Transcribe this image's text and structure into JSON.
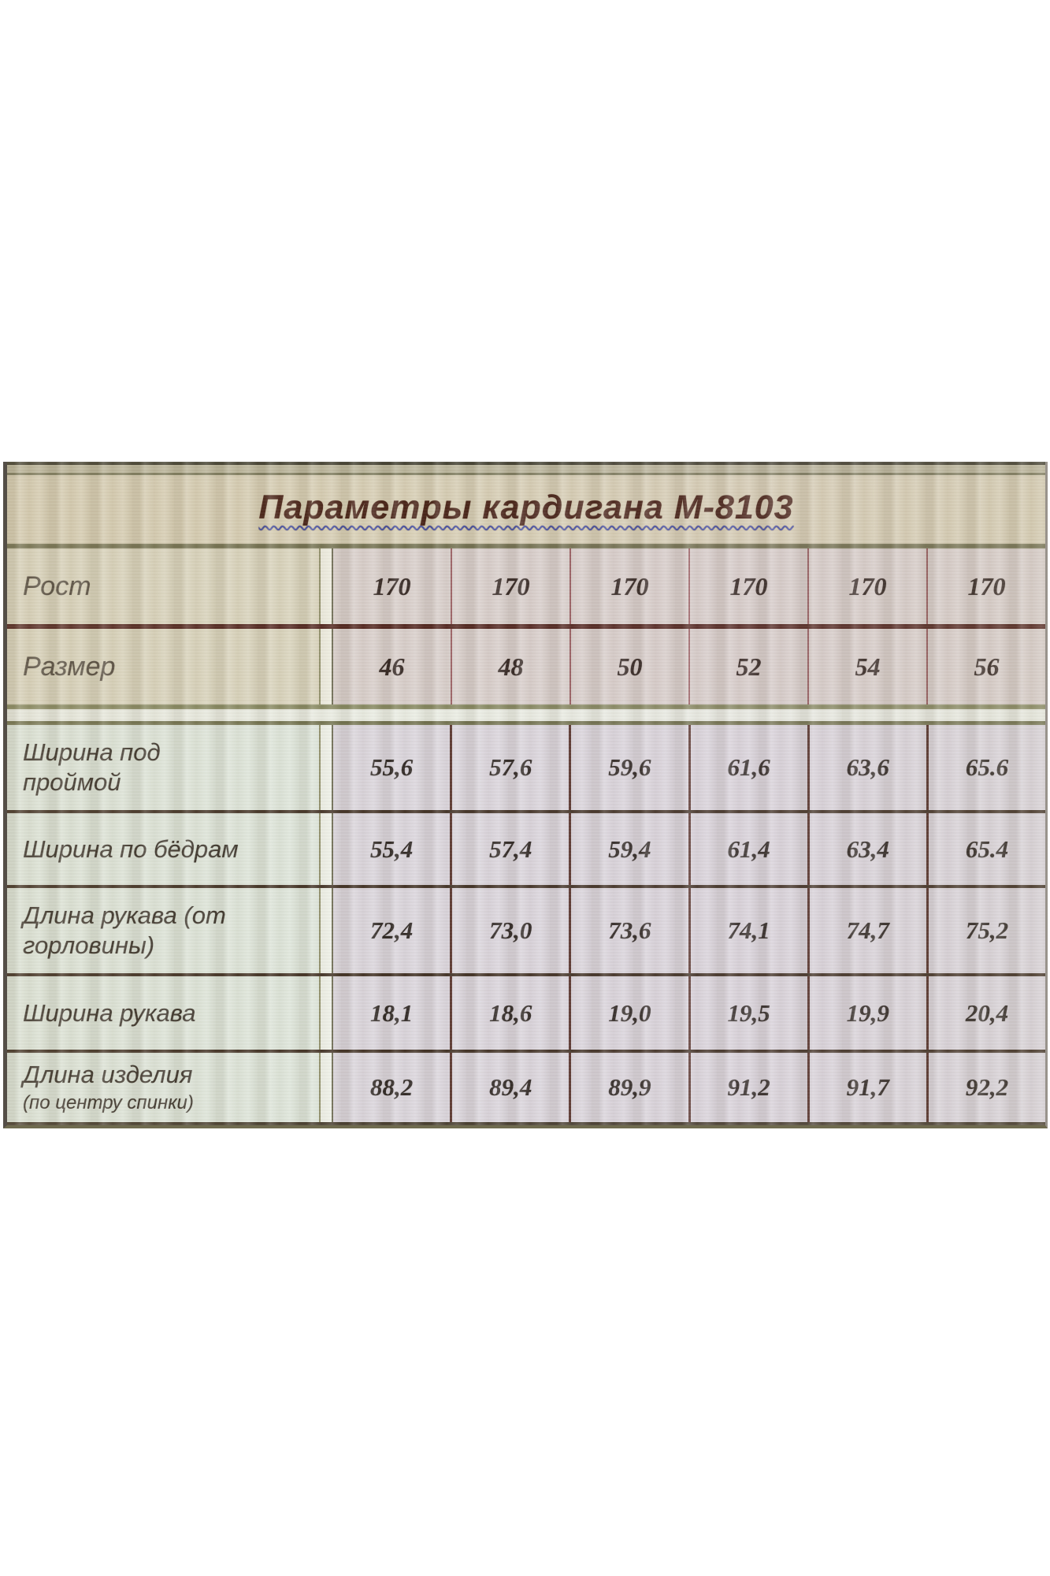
{
  "chart_data": {
    "type": "table",
    "title": "Параметры кардигана М-8103",
    "header_rows": [
      {
        "label": "Рост",
        "values": [
          "170",
          "170",
          "170",
          "170",
          "170",
          "170"
        ]
      },
      {
        "label": "Размер",
        "values": [
          "46",
          "48",
          "50",
          "52",
          "54",
          "56"
        ]
      }
    ],
    "rows": [
      {
        "label": "Ширина под\nпроймой",
        "sublabel": "",
        "values": [
          "55,6",
          "57,6",
          "59,6",
          "61,6",
          "63,6",
          "65.6"
        ]
      },
      {
        "label": "Ширина по бёдрам",
        "sublabel": "",
        "values": [
          "55,4",
          "57,4",
          "59,4",
          "61,4",
          "63,4",
          "65.4"
        ]
      },
      {
        "label": "Длина рукава (от\nгорловины)",
        "sublabel": "",
        "values": [
          "72,4",
          "73,0",
          "73,6",
          "74,1",
          "74,7",
          "75,2"
        ]
      },
      {
        "label": "Ширина рукава",
        "sublabel": "",
        "values": [
          "18,1",
          "18,6",
          "19,0",
          "19,5",
          "19,9",
          "20,4"
        ]
      },
      {
        "label": "Длина изделия",
        "sublabel": "(по центру спинки)",
        "values": [
          "88,2",
          "89,4",
          "89,9",
          "91,2",
          "91,7",
          "92,2"
        ]
      }
    ]
  }
}
